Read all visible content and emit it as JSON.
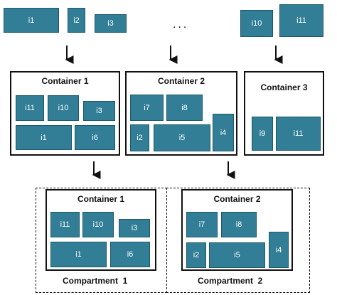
{
  "colors": {
    "item_fill": "#317e96",
    "item_border": "#1d5869",
    "line": "#111111"
  },
  "icons": [
    "down-arrow-icon"
  ],
  "top_row": {
    "items": [
      "i1",
      "i2",
      "i3",
      "i10",
      "i11"
    ],
    "ellipsis": "..."
  },
  "containers": [
    {
      "title": "Container 1",
      "items": [
        "i11",
        "i10",
        "i3",
        "i1",
        "i6"
      ]
    },
    {
      "title": "Container 2",
      "items": [
        "i7",
        "i8",
        "i2",
        "i5",
        "i4"
      ]
    },
    {
      "title": "Container 3",
      "items": [
        "i9",
        "i11"
      ]
    }
  ],
  "compartments": [
    {
      "label": "Compartment  1",
      "container": {
        "title": "Container 1",
        "items": [
          "i11",
          "i10",
          "i3",
          "i1",
          "i6"
        ]
      }
    },
    {
      "label": "Compartment  2",
      "container": {
        "title": "Container 2",
        "items": [
          "i7",
          "i8",
          "i2",
          "i5",
          "i4"
        ]
      }
    }
  ]
}
